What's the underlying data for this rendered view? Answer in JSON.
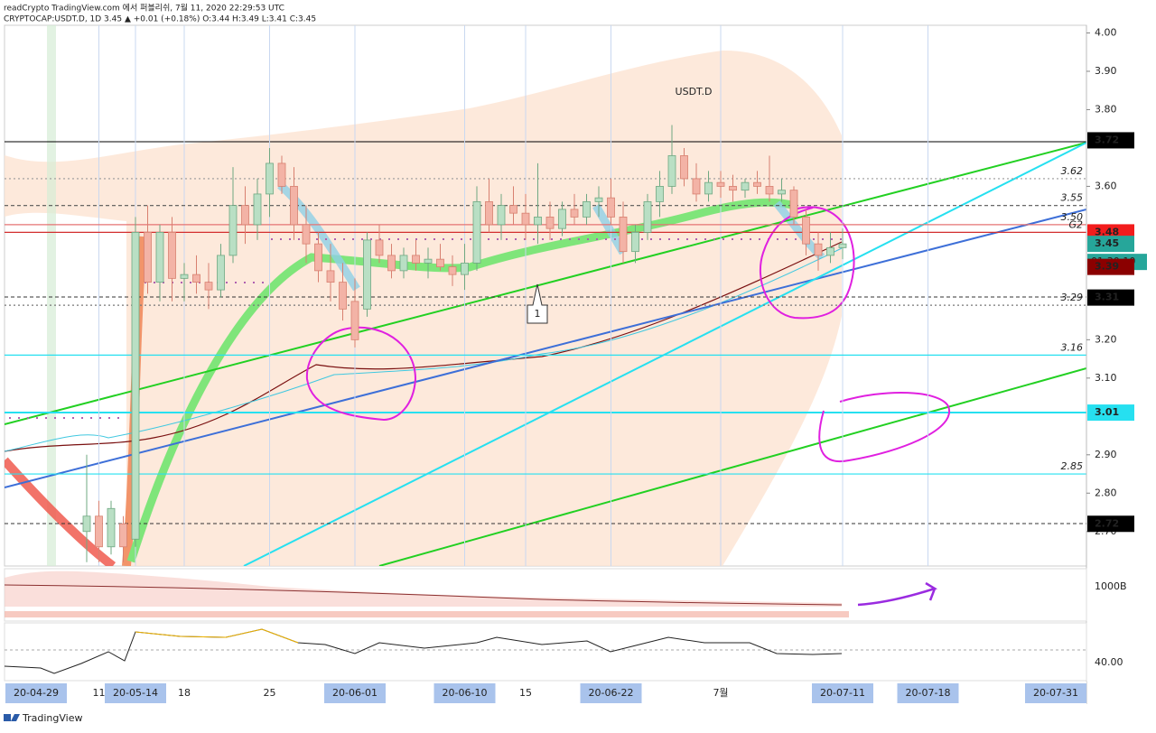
{
  "chart_data": {
    "type": "candlestick",
    "title": "readCrypto TradingView.com 에서 퍼블리쉬, 7월 11, 2020 22:29:53 UTC",
    "subtitle": "CRYPTOCAP:USDT.D, 1D 3.45 ▲ +0.01 (+0.18%) O:3.44 H:3.49 L:3.41 C:3.45",
    "symbol_label": "USDT.D",
    "wave_label": "1",
    "brand": "TradingView",
    "x": [
      "20-05-10",
      "20-05-11",
      "20-05-12",
      "20-05-13",
      "20-05-14",
      "20-05-15",
      "20-05-16",
      "20-05-17",
      "20-05-18",
      "20-05-19",
      "20-05-20",
      "20-05-21",
      "20-05-22",
      "20-05-23",
      "20-05-24",
      "20-05-25",
      "20-05-26",
      "20-05-27",
      "20-05-28",
      "20-05-29",
      "20-05-30",
      "20-05-31",
      "20-06-01",
      "20-06-02",
      "20-06-03",
      "20-06-04",
      "20-06-05",
      "20-06-06",
      "20-06-07",
      "20-06-08",
      "20-06-09",
      "20-06-10",
      "20-06-11",
      "20-06-12",
      "20-06-13",
      "20-06-14",
      "20-06-15",
      "20-06-16",
      "20-06-17",
      "20-06-18",
      "20-06-19",
      "20-06-20",
      "20-06-21",
      "20-06-22",
      "20-06-23",
      "20-06-24",
      "20-06-25",
      "20-06-26",
      "20-06-27",
      "20-06-28",
      "20-06-29",
      "20-06-30",
      "20-07-01",
      "20-07-02",
      "20-07-03",
      "20-07-04",
      "20-07-05",
      "20-07-06",
      "20-07-07",
      "20-07-08",
      "20-07-09",
      "20-07-10",
      "20-07-11"
    ],
    "open": [
      2.7,
      2.74,
      2.66,
      2.72,
      2.68,
      3.48,
      3.35,
      3.48,
      3.36,
      3.37,
      3.35,
      3.33,
      3.42,
      3.55,
      3.5,
      3.58,
      3.66,
      3.6,
      3.5,
      3.45,
      3.38,
      3.35,
      3.3,
      3.28,
      3.46,
      3.42,
      3.38,
      3.42,
      3.4,
      3.41,
      3.39,
      3.37,
      3.4,
      3.56,
      3.5,
      3.55,
      3.53,
      3.5,
      3.52,
      3.49,
      3.54,
      3.52,
      3.56,
      3.57,
      3.52,
      3.43,
      3.48,
      3.56,
      3.6,
      3.68,
      3.62,
      3.58,
      3.61,
      3.6,
      3.59,
      3.61,
      3.6,
      3.58,
      3.59,
      3.52,
      3.45,
      3.42,
      3.44
    ],
    "high": [
      2.9,
      2.78,
      2.78,
      2.74,
      3.52,
      3.55,
      3.5,
      3.52,
      3.4,
      3.42,
      3.4,
      3.45,
      3.65,
      3.6,
      3.62,
      3.7,
      3.68,
      3.65,
      3.55,
      3.48,
      3.45,
      3.4,
      3.36,
      3.48,
      3.5,
      3.45,
      3.44,
      3.46,
      3.44,
      3.45,
      3.42,
      3.45,
      3.6,
      3.62,
      3.58,
      3.6,
      3.58,
      3.66,
      3.56,
      3.56,
      3.58,
      3.58,
      3.6,
      3.62,
      3.56,
      3.5,
      3.58,
      3.64,
      3.76,
      3.7,
      3.66,
      3.64,
      3.64,
      3.63,
      3.62,
      3.64,
      3.68,
      3.62,
      3.6,
      3.54,
      3.48,
      3.48,
      3.49
    ],
    "low": [
      2.62,
      2.62,
      2.64,
      2.62,
      2.66,
      3.32,
      3.3,
      3.3,
      3.3,
      3.32,
      3.28,
      3.31,
      3.4,
      3.45,
      3.46,
      3.52,
      3.58,
      3.46,
      3.4,
      3.35,
      3.3,
      3.25,
      3.18,
      3.26,
      3.4,
      3.36,
      3.36,
      3.38,
      3.36,
      3.38,
      3.34,
      3.33,
      3.38,
      3.48,
      3.46,
      3.5,
      3.46,
      3.45,
      3.46,
      3.47,
      3.5,
      3.5,
      3.52,
      3.5,
      3.4,
      3.4,
      3.46,
      3.52,
      3.58,
      3.6,
      3.56,
      3.56,
      3.57,
      3.56,
      3.57,
      3.58,
      3.56,
      3.56,
      3.5,
      3.42,
      3.38,
      3.4,
      3.41
    ],
    "close": [
      2.74,
      2.66,
      2.76,
      2.66,
      3.48,
      3.35,
      3.48,
      3.36,
      3.37,
      3.35,
      3.33,
      3.42,
      3.55,
      3.5,
      3.58,
      3.66,
      3.6,
      3.5,
      3.45,
      3.38,
      3.35,
      3.28,
      3.2,
      3.46,
      3.42,
      3.38,
      3.42,
      3.4,
      3.41,
      3.39,
      3.37,
      3.4,
      3.56,
      3.5,
      3.55,
      3.53,
      3.5,
      3.52,
      3.49,
      3.54,
      3.52,
      3.56,
      3.57,
      3.52,
      3.43,
      3.48,
      3.56,
      3.6,
      3.68,
      3.62,
      3.58,
      3.61,
      3.6,
      3.59,
      3.61,
      3.6,
      3.58,
      3.59,
      3.52,
      3.45,
      3.42,
      3.44,
      3.45
    ],
    "up_color": "#b9dfc4",
    "down_color": "#f3b3a6",
    "ylim": [
      2.61,
      4.02
    ],
    "yticks": [
      {
        "value": 2.7,
        "label": "2.70"
      },
      {
        "value": 2.8,
        "label": "2.80"
      },
      {
        "value": 2.9,
        "label": "2.90"
      },
      {
        "value": 3.1,
        "label": "3.10"
      },
      {
        "value": 3.2,
        "label": "3.20"
      },
      {
        "value": 3.6,
        "label": "3.60"
      },
      {
        "value": 3.8,
        "label": "3.80"
      },
      {
        "value": 3.9,
        "label": "3.90"
      },
      {
        "value": 4.0,
        "label": "4.00"
      }
    ],
    "xticks": [
      {
        "value": "20-04-29",
        "label": "20-04-29"
      },
      {
        "value": "20-05-11",
        "label": "11"
      },
      {
        "value": "20-05-14",
        "label": "20-05-14"
      },
      {
        "value": "20-05-18",
        "label": "18"
      },
      {
        "value": "20-05-25",
        "label": "25"
      },
      {
        "value": "20-06-01",
        "label": "20-06-01"
      },
      {
        "value": "20-06-10",
        "label": "20-06-10"
      },
      {
        "value": "20-06-15",
        "label": "15"
      },
      {
        "value": "20-06-22",
        "label": "20-06-22"
      },
      {
        "value": "20-07-01",
        "label": "7월"
      },
      {
        "value": "20-07-11",
        "label": "20-07-11"
      },
      {
        "value": "20-07-18",
        "label": "20-07-18"
      },
      {
        "value": "20-07-31",
        "label": "20-07-31"
      }
    ],
    "levels": [
      {
        "value": 3.62,
        "label": "3.62",
        "color": "#999",
        "dash": "2 3"
      },
      {
        "value": 3.55,
        "label": "3.55",
        "color": "#555",
        "dash": "4 3"
      },
      {
        "value": 3.5,
        "label": "3.50",
        "color": "#e57373",
        "dash": ""
      },
      {
        "value": 3.48,
        "label": "G2",
        "color": "#d32f2f",
        "dash": ""
      },
      {
        "value": 3.29,
        "label": "3.29",
        "color": "#777",
        "dash": "2 3"
      },
      {
        "value": 3.16,
        "label": "3.16",
        "color": "#26e0f0",
        "dash": ""
      },
      {
        "value": 2.85,
        "label": "2.85",
        "color": "#26e0f0",
        "dash": ""
      }
    ],
    "badges": [
      {
        "value": 3.72,
        "color": "#000000"
      },
      {
        "value": 3.48,
        "color": "#f21c1c"
      },
      {
        "value": 3.45,
        "color": "#26a69a"
      },
      {
        "value": 3.39,
        "color": "#8b0000"
      },
      {
        "value": 3.31,
        "color": "#000000"
      },
      {
        "value": 3.01,
        "color": "#26e0f0"
      },
      {
        "value": 2.72,
        "color": "#000000"
      }
    ],
    "countdown": "01:30:10",
    "volume_label": "1000B",
    "oscillator_label": "40.00"
  }
}
